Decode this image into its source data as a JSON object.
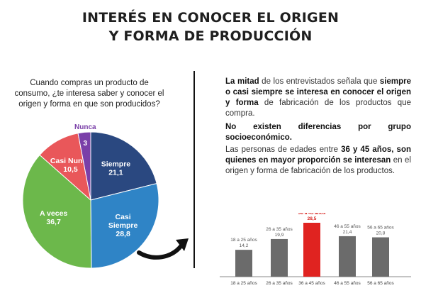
{
  "title": {
    "line1": "INTERÉS EN CONOCER EL ORIGEN",
    "line2": "Y FORMA DE PRODUCCIÓN"
  },
  "question": "Cuando compras un producto de consumo, ¿te interesa saber y conocer el origen y forma en que son producidos?",
  "paragraphs": {
    "p1": {
      "bold_a": "La mitad",
      "text_a": " de los entrevistados señala que ",
      "bold_b": "siempre o casi siempre se interesa en conocer el origen y forma",
      "text_b": " de fabricación de los productos que compra."
    },
    "p2": "No existen diferencias por grupo socioeconómico.",
    "p3": {
      "text_a": "Las personas de edades entre ",
      "bold_a": "36 y 45 años, son quienes en mayor proporción se interesan",
      "text_b": " en el origen y forma de fabricación de los productos."
    }
  },
  "colors": {
    "siempre": "#2a4880",
    "casi_siempre": "#2f84c6",
    "a_veces": "#6cb84b",
    "casi_nunca": "#e9575a",
    "nunca": "#7a3fa8",
    "bar_default": "#6b6b6b",
    "bar_highlight": "#e02320",
    "highlight_text": "#d7231f"
  },
  "chart_data": [
    {
      "type": "pie",
      "slices": [
        {
          "key": "siempre",
          "label": "Siempre",
          "value": 21.1,
          "value_label": "21,1"
        },
        {
          "key": "casi_siempre",
          "label": "Casi Siempre",
          "value": 28.8,
          "value_label": "28,8"
        },
        {
          "key": "a_veces",
          "label": "A veces",
          "value": 36.7,
          "value_label": "36,7"
        },
        {
          "key": "casi_nunca",
          "label": "Casi Nunca",
          "value": 10.5,
          "value_label": "10,5"
        },
        {
          "key": "nunca",
          "label": "Nunca",
          "value": 3,
          "value_label": "3"
        }
      ]
    },
    {
      "type": "bar",
      "categories": [
        "18 a 25 años",
        "26 a 35 años",
        "36 a 45 años",
        "46 a 55 años",
        "56 a 65 años"
      ],
      "values": [
        14.2,
        19.9,
        28.5,
        21.4,
        20.8
      ],
      "value_labels": [
        "14,2",
        "19,9",
        "28,5",
        "21,4",
        "20,8"
      ],
      "highlight_index": 2,
      "ylim": [
        0,
        30
      ]
    }
  ]
}
